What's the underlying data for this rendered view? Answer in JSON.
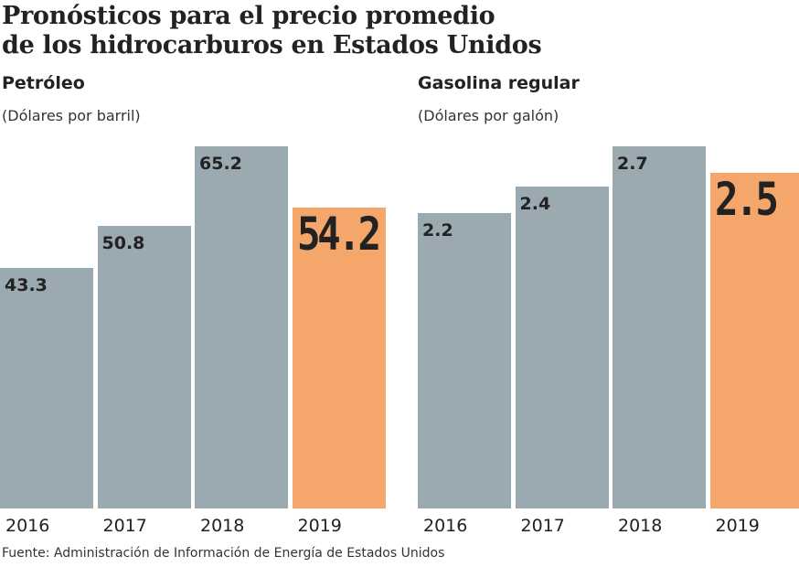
{
  "title_line1": "Pronósticos para el precio promedio",
  "title_line2": "de los hidrocarburos en Estados Unidos",
  "source": "Fuente: Administración de Información de Energía de Estados Unidos",
  "colors": {
    "base": "#9ba9b0",
    "highlight": "#f4a66b"
  },
  "chart_data": [
    {
      "type": "bar",
      "title": "Petróleo",
      "ylabel": "(Dólares por barril)",
      "categories": [
        "2016",
        "2017",
        "2018",
        "2019"
      ],
      "values": [
        43.3,
        50.8,
        65.2,
        54.2
      ],
      "value_labels": [
        "43.3",
        "50.8",
        "65.2",
        "54.2"
      ],
      "highlight": "2019",
      "ylim": [
        0,
        65.2
      ],
      "grid": false
    },
    {
      "type": "bar",
      "title": "Gasolina regular",
      "ylabel": "(Dólares por galón)",
      "categories": [
        "2016",
        "2017",
        "2018",
        "2019"
      ],
      "values": [
        2.2,
        2.4,
        2.7,
        2.5
      ],
      "value_labels": [
        "2.2",
        "2.4",
        "2.7",
        "2.5"
      ],
      "highlight": "2019",
      "ylim": [
        0,
        2.7
      ],
      "grid": false
    }
  ]
}
